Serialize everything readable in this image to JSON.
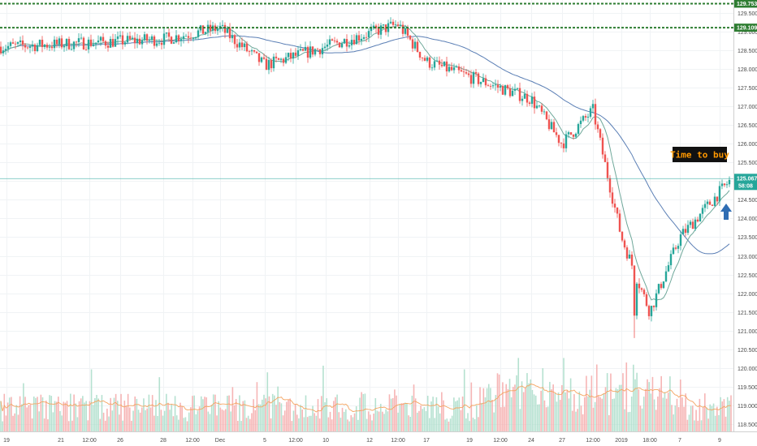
{
  "chart_data": {
    "type": "candlestick",
    "title": "",
    "xlabel": "",
    "ylabel": "",
    "ylim": [
      118.3,
      129.85
    ],
    "grid": true,
    "y_ticks": [
      129.5,
      129.0,
      128.5,
      128.0,
      127.5,
      127.0,
      126.5,
      126.0,
      125.5,
      125.0,
      124.5,
      124.0,
      123.5,
      123.0,
      122.5,
      122.0,
      121.5,
      121.0,
      120.5,
      120.0,
      119.5,
      119.0,
      118.5
    ],
    "y_tick_labels": [
      "129.500",
      "129.000",
      "128.500",
      "128.000",
      "127.500",
      "127.000",
      "126.500",
      "126.000",
      "125.500",
      "125.000",
      "124.500",
      "124.000",
      "123.500",
      "123.000",
      "122.500",
      "122.000",
      "121.500",
      "121.000",
      "120.500",
      "120.000",
      "119.500",
      "119.000",
      "118.500"
    ],
    "x_tick_labels": [
      "19",
      "21",
      "12:00",
      "26",
      "28",
      "12:00",
      "Dec",
      "5",
      "12:00",
      "10",
      "12",
      "12:00",
      "17",
      "19",
      "12:00",
      "24",
      "27",
      "12:00",
      "2019",
      "18:00",
      "7",
      "9"
    ],
    "x_ticks": [
      8,
      75,
      110,
      148,
      201,
      237,
      271,
      326,
      364,
      401,
      455,
      490,
      525,
      578,
      616,
      654,
      692,
      730,
      765,
      800,
      837,
      886
    ],
    "horizontal_levels": [
      {
        "value": 129.753,
        "label": "129.753",
        "color": "#2e7d32"
      },
      {
        "value": 129.109,
        "label": "129.109",
        "color": "#2e7d32"
      }
    ],
    "current_price": {
      "value": 125.067,
      "label": "125.067",
      "countdown": "58:08",
      "color": "#26a69a"
    },
    "key_prices": [
      {
        "x": "19",
        "y": 128.6
      },
      {
        "x": "28",
        "y": 128.8
      },
      {
        "x": "Dec",
        "y": 129.1
      },
      {
        "x": "5",
        "y": 128.1
      },
      {
        "x": "12:00",
        "y": 129.2
      },
      {
        "x": "17",
        "y": 128.2
      },
      {
        "x": "24",
        "y": 127.2
      },
      {
        "x": "27",
        "y": 126.0
      },
      {
        "x": "12:00",
        "y": 126.9
      },
      {
        "x": "2019",
        "y": 123.5
      },
      {
        "x": "18:00",
        "y": 121.5
      },
      {
        "x": "7",
        "y": 123.5
      },
      {
        "x": "9",
        "y": 125.0
      }
    ],
    "low_point": {
      "x": "2019",
      "y": 120.8
    },
    "series": [
      {
        "kind": "candles",
        "up_color": "#26a69a",
        "down_color": "#ef5350"
      },
      {
        "kind": "moving-average",
        "color": "#5b7fb5"
      },
      {
        "kind": "moving-average",
        "color": "#6fa89a"
      },
      {
        "kind": "volume",
        "color": "#f5a8a8"
      },
      {
        "kind": "volume-average",
        "color": "#f4a460"
      }
    ],
    "annotations": [
      {
        "text": "Time to buy",
        "position": "right",
        "background": "#000000",
        "text_color": "#ff9800"
      },
      {
        "type": "arrow-up",
        "icon": "arrow-up-icon",
        "color": "#2f6db3"
      }
    ]
  }
}
